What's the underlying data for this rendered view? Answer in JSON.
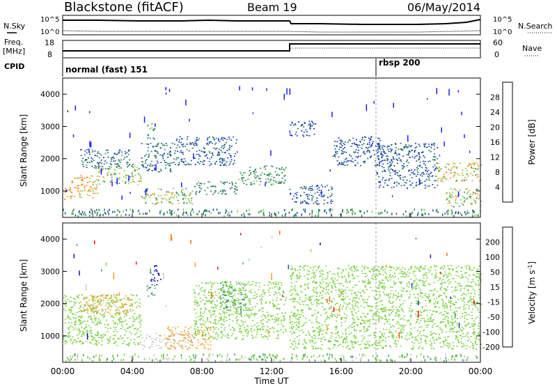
{
  "header": {
    "station": "Blackstone (fitACF)",
    "beam": "Beam 19",
    "date": "06/May/2014"
  },
  "noise_panel": {
    "left_label": "N.Sky",
    "right_label": "N.Search",
    "left_ticks": [
      "10^5",
      "10^0"
    ],
    "right_ticks": [
      "10^5",
      "10^0"
    ]
  },
  "freq_panel": {
    "left_label_1": "Freq.",
    "left_label_2": "[MHz]",
    "right_label": "Nave",
    "left_ticks": [
      "18",
      "8"
    ],
    "right_ticks": [
      "60",
      "0"
    ]
  },
  "cpid": {
    "label": "CPID",
    "modes": [
      {
        "name": "normal (fast) 151",
        "start_hour": 0
      },
      {
        "name": "rbsp 200",
        "start_hour": 18
      }
    ]
  },
  "time_axis": {
    "label": "Time UT",
    "ticks": [
      "00:00",
      "04:00",
      "08:00",
      "12:00",
      "16:00",
      "20:00",
      "00:00"
    ]
  },
  "colors": {
    "power": [
      "#1a1aff",
      "#1e3fa8",
      "#1f6e6e",
      "#2e8b57",
      "#78c850",
      "#f0a020",
      "#ff7000",
      "#ff0000"
    ],
    "velocity": [
      "#ff0000",
      "#ff6000",
      "#f5a020",
      "#c8c8c8",
      "#78d040",
      "#3a9a5a",
      "#1e50b4",
      "#1010c0"
    ],
    "ground_scatter": "#c0c0c0"
  },
  "chart_data": [
    {
      "type": "heatmap",
      "title": "Power",
      "ylabel": "Slant Range [km]",
      "xlabel": "Time UT",
      "ylim": [
        180,
        4500
      ],
      "xlim": [
        0,
        24
      ],
      "yticks": [
        1000,
        2000,
        3000,
        4000
      ],
      "colorbar": {
        "label": "Power [dB]",
        "range": [
          0,
          32
        ],
        "ticks": [
          4,
          8,
          12,
          16,
          20,
          24,
          28
        ]
      },
      "echo_bands": [
        {
          "t_start": 0.0,
          "t_end": 0.5,
          "range_low": 700,
          "range_high": 1200,
          "power": 24
        },
        {
          "t_start": 0.5,
          "t_end": 2.0,
          "range_low": 800,
          "range_high": 1500,
          "power": 22
        },
        {
          "t_start": 2.0,
          "t_end": 4.5,
          "range_low": 1200,
          "range_high": 1800,
          "power": 18
        },
        {
          "t_start": 1.0,
          "t_end": 4.0,
          "range_low": 1700,
          "range_high": 2300,
          "power": 10
        },
        {
          "t_start": 4.5,
          "t_end": 7.5,
          "range_low": 600,
          "range_high": 1100,
          "power": 18
        },
        {
          "t_start": 4.5,
          "t_end": 6.5,
          "range_low": 1600,
          "range_high": 2500,
          "power": 10
        },
        {
          "t_start": 4.8,
          "t_end": 5.3,
          "range_low": 2600,
          "range_high": 3100,
          "power": 16
        },
        {
          "t_start": 7.5,
          "t_end": 10.0,
          "range_low": 900,
          "range_high": 1300,
          "power": 12
        },
        {
          "t_start": 6.5,
          "t_end": 10.0,
          "range_low": 1800,
          "range_high": 2700,
          "power": 8
        },
        {
          "t_start": 10.0,
          "t_end": 12.8,
          "range_low": 1200,
          "range_high": 1800,
          "power": 14
        },
        {
          "t_start": 13.0,
          "t_end": 15.5,
          "range_low": 600,
          "range_high": 1200,
          "power": 8
        },
        {
          "t_start": 13.0,
          "t_end": 14.5,
          "range_low": 2700,
          "range_high": 3200,
          "power": 6
        },
        {
          "t_start": 15.5,
          "t_end": 18.5,
          "range_low": 1800,
          "range_high": 2700,
          "power": 7
        },
        {
          "t_start": 18.0,
          "t_end": 21.5,
          "range_low": 1100,
          "range_high": 2500,
          "power": 8
        },
        {
          "t_start": 21.5,
          "t_end": 24.0,
          "range_low": 1300,
          "range_high": 1900,
          "power": 20
        },
        {
          "t_start": 22.0,
          "t_end": 24.0,
          "range_low": 500,
          "range_high": 1100,
          "power": 18
        }
      ]
    },
    {
      "type": "heatmap",
      "title": "Velocity",
      "ylabel": "Slant Range [km]",
      "xlabel": "Time UT",
      "ylim": [
        180,
        4500
      ],
      "xlim": [
        0,
        24
      ],
      "yticks": [
        1000,
        2000,
        3000,
        4000
      ],
      "colorbar": {
        "label": "Velocity [m s^-1]",
        "range": [
          -250,
          250
        ],
        "ticks": [
          200,
          100,
          50,
          15,
          -15,
          -50,
          -100,
          -200
        ]
      },
      "echo_bands": [
        {
          "t_start": 0.0,
          "t_end": 4.5,
          "range_low": 700,
          "range_high": 2300,
          "velocity": 0
        },
        {
          "t_start": 1.0,
          "t_end": 4.0,
          "range_low": 1700,
          "range_high": 2300,
          "velocity": -60
        },
        {
          "t_start": 4.5,
          "t_end": 7.5,
          "range_low": 600,
          "range_high": 1100,
          "velocity": -40
        },
        {
          "t_start": 6.0,
          "t_end": 8.5,
          "range_low": 600,
          "range_high": 1300,
          "velocity": -60
        },
        {
          "t_start": 4.8,
          "t_end": 5.3,
          "range_low": 2200,
          "range_high": 2600,
          "velocity": 40
        },
        {
          "t_start": 5.0,
          "t_end": 5.6,
          "range_low": 2600,
          "range_high": 3200,
          "velocity": 200
        },
        {
          "t_start": 9.0,
          "t_end": 10.5,
          "range_low": 1800,
          "range_high": 2700,
          "velocity": 30
        },
        {
          "t_start": 7.5,
          "t_end": 12.8,
          "range_low": 900,
          "range_high": 2700,
          "velocity": 0
        },
        {
          "t_start": 13.0,
          "t_end": 24.0,
          "range_low": 600,
          "range_high": 3200,
          "velocity": 0
        }
      ]
    }
  ]
}
